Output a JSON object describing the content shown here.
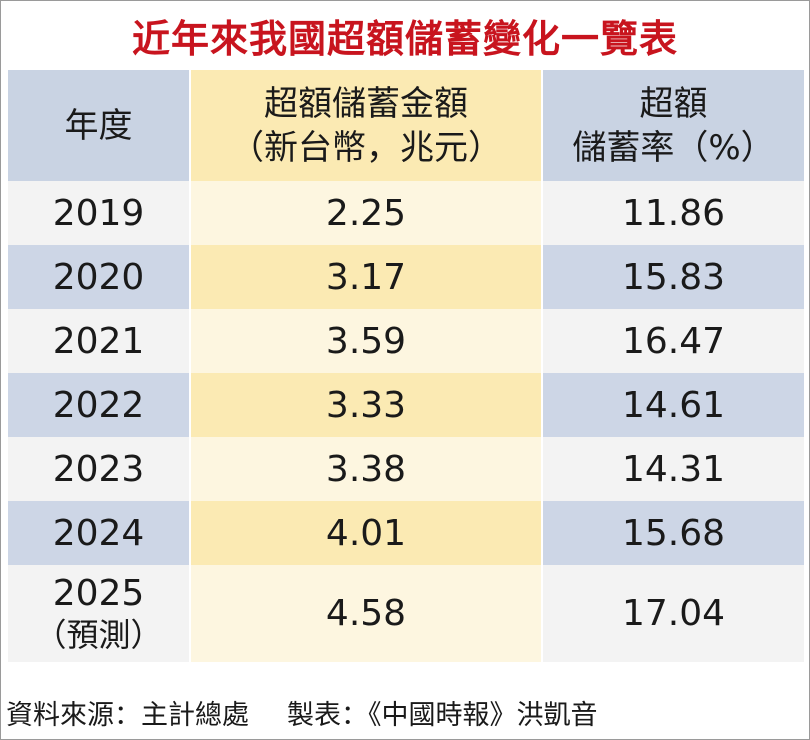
{
  "title": "近年來我國超額儲蓄變化一覽表",
  "table": {
    "headers": {
      "year": "年度",
      "amount_line1": "超額儲蓄金額",
      "amount_line2": "（新台幣，兆元）",
      "rate_line1": "超額",
      "rate_line2": "儲蓄率（%）"
    },
    "rows": [
      {
        "year": "2019",
        "note": "",
        "amount": "2.25",
        "rate": "11.86"
      },
      {
        "year": "2020",
        "note": "",
        "amount": "3.17",
        "rate": "15.83"
      },
      {
        "year": "2021",
        "note": "",
        "amount": "3.59",
        "rate": "16.47"
      },
      {
        "year": "2022",
        "note": "",
        "amount": "3.33",
        "rate": "14.61"
      },
      {
        "year": "2023",
        "note": "",
        "amount": "3.38",
        "rate": "14.31"
      },
      {
        "year": "2024",
        "note": "",
        "amount": "4.01",
        "rate": "15.68"
      },
      {
        "year": "2025",
        "note": "（預測）",
        "amount": "4.58",
        "rate": "17.04"
      }
    ]
  },
  "footer": {
    "source": "資料來源：主計總處",
    "credit": "製表：《中國時報》洪凱音"
  },
  "colors": {
    "title": "#c8141e",
    "header_blue": "#c9d3e3",
    "header_yellow": "#fbeab3",
    "row_light": "#f3f3f3",
    "row_light_yellow": "#fdf6e0"
  }
}
